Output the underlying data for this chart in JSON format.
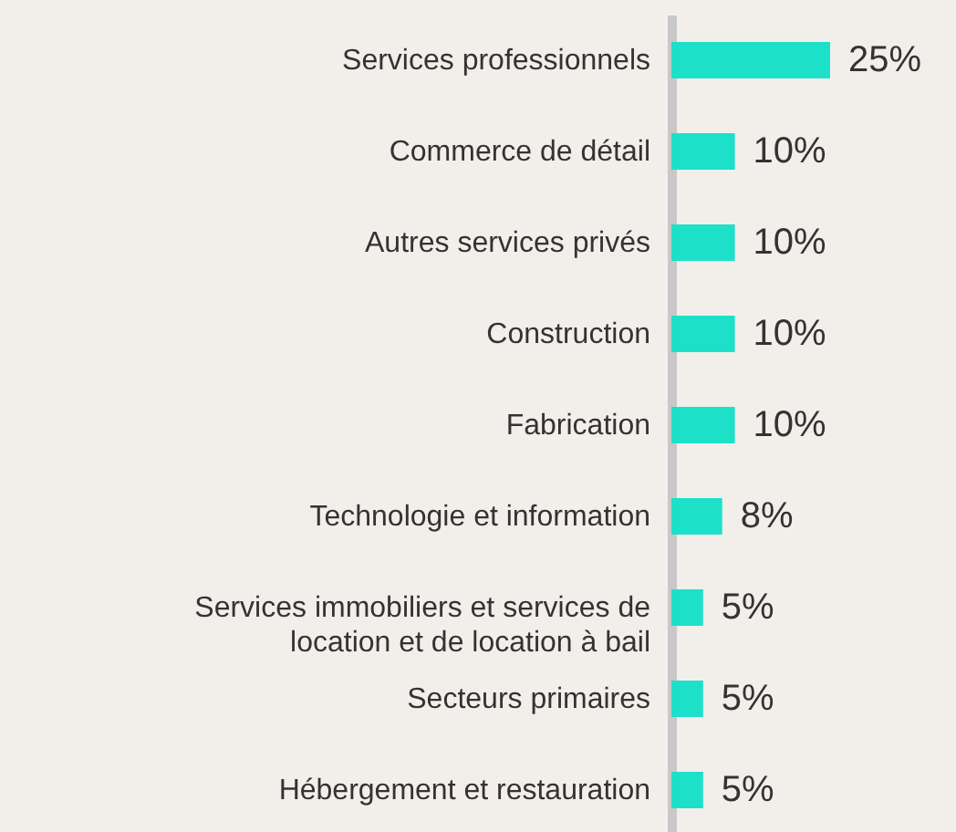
{
  "chart_data": {
    "type": "bar",
    "orientation": "horizontal",
    "categories": [
      "Services professionnels",
      "Commerce de détail",
      "Autres services privés",
      "Construction",
      "Fabrication",
      "Technologie et information",
      "Services immobiliers et services de location et de location à bail",
      "Secteurs primaires",
      "Hébergement et restauration"
    ],
    "values": [
      25,
      10,
      10,
      10,
      10,
      8,
      5,
      5,
      5
    ],
    "value_labels": [
      "25%",
      "10%",
      "10%",
      "10%",
      "10%",
      "8%",
      "5%",
      "5%",
      "5%"
    ],
    "color": "#1de0c9"
  }
}
